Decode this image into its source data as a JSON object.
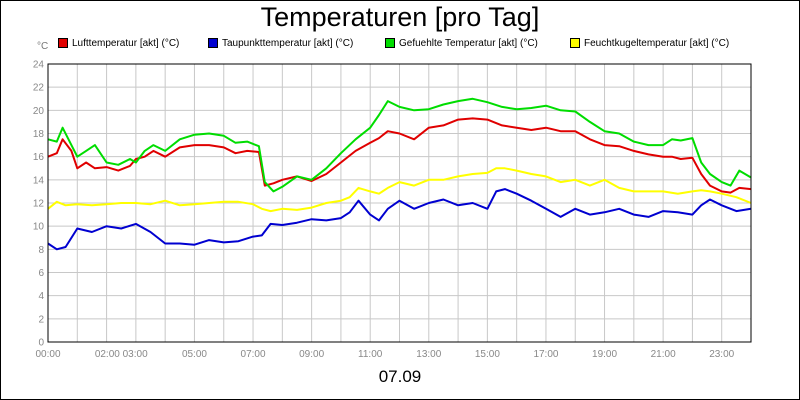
{
  "chart_data": {
    "type": "line",
    "title": "Temperaturen [pro Tag]",
    "ylabel": "°C",
    "xlabel": "07.09",
    "ylim": [
      0,
      24
    ],
    "xlim": [
      0,
      24
    ],
    "y_ticks": [
      0,
      2,
      4,
      6,
      8,
      10,
      12,
      14,
      16,
      18,
      20,
      22,
      24
    ],
    "x_tick_labels": [
      "00:00",
      "02:00 03:00",
      "05:00",
      "07:00",
      "09:00",
      "11:00",
      "13:00",
      "15:00",
      "17:00",
      "19:00",
      "21:00",
      "23:00"
    ],
    "x_tick_positions": [
      0,
      2.5,
      5,
      7,
      9,
      11,
      13,
      15,
      17,
      19,
      21,
      23
    ],
    "grid": true,
    "legend_position": "top",
    "series": [
      {
        "name": "Lufttemperatur [akt] (°C)",
        "color": "#e00000",
        "x": [
          0,
          0.3,
          0.5,
          0.8,
          1,
          1.3,
          1.6,
          2,
          2.4,
          2.8,
          3,
          3.3,
          3.6,
          4,
          4.5,
          5,
          5.5,
          6,
          6.4,
          6.8,
          7.2,
          7.4,
          7.7,
          8,
          8.5,
          9,
          9.5,
          10,
          10.5,
          11,
          11.3,
          11.6,
          12,
          12.5,
          13,
          13.5,
          14,
          14.5,
          15,
          15.5,
          16,
          16.5,
          17,
          17.5,
          18,
          18.5,
          19,
          19.5,
          20,
          20.5,
          21,
          21.3,
          21.6,
          22,
          22.3,
          22.6,
          23,
          23.3,
          23.6,
          24
        ],
        "values": [
          16,
          16.3,
          17.5,
          16.5,
          15,
          15.5,
          15,
          15.1,
          14.8,
          15.2,
          15.8,
          16,
          16.5,
          16,
          16.8,
          17,
          17,
          16.8,
          16.3,
          16.5,
          16.4,
          13.5,
          13.7,
          14,
          14.3,
          13.9,
          14.5,
          15.5,
          16.5,
          17.2,
          17.6,
          18.2,
          18,
          17.5,
          18.5,
          18.7,
          19.2,
          19.3,
          19.2,
          18.7,
          18.5,
          18.3,
          18.5,
          18.2,
          18.2,
          17.5,
          17,
          16.9,
          16.5,
          16.2,
          16,
          16,
          15.8,
          15.9,
          14.5,
          13.5,
          13,
          12.9,
          13.3,
          13.2
        ]
      },
      {
        "name": "Taupunkttemperatur [akt] (°C)",
        "color": "#0000d0",
        "x": [
          0,
          0.3,
          0.6,
          1,
          1.5,
          2,
          2.5,
          3,
          3.5,
          4,
          4.5,
          5,
          5.5,
          6,
          6.5,
          7,
          7.3,
          7.6,
          8,
          8.5,
          9,
          9.5,
          10,
          10.3,
          10.6,
          11,
          11.3,
          11.6,
          12,
          12.5,
          13,
          13.5,
          14,
          14.5,
          15,
          15.3,
          15.6,
          16,
          16.5,
          17,
          17.5,
          18,
          18.5,
          19,
          19.5,
          20,
          20.5,
          21,
          21.5,
          22,
          22.3,
          22.6,
          23,
          23.5,
          24
        ],
        "values": [
          8.5,
          8,
          8.2,
          9.8,
          9.5,
          10,
          9.8,
          10.2,
          9.5,
          8.5,
          8.5,
          8.4,
          8.8,
          8.6,
          8.7,
          9.1,
          9.2,
          10.2,
          10.1,
          10.3,
          10.6,
          10.5,
          10.7,
          11.2,
          12.2,
          11,
          10.5,
          11.5,
          12.2,
          11.5,
          12,
          12.3,
          11.8,
          12,
          11.5,
          13,
          13.2,
          12.8,
          12.2,
          11.5,
          10.8,
          11.5,
          11,
          11.2,
          11.5,
          11,
          10.8,
          11.3,
          11.2,
          11,
          11.8,
          12.3,
          11.8,
          11.3,
          11.5
        ]
      },
      {
        "name": "Gefuehlte Temperatur [akt] (°C)",
        "color": "#00dd00",
        "x": [
          0,
          0.3,
          0.5,
          0.8,
          1,
          1.3,
          1.6,
          2,
          2.4,
          2.8,
          3,
          3.3,
          3.6,
          4,
          4.5,
          5,
          5.5,
          6,
          6.4,
          6.8,
          7.2,
          7.4,
          7.7,
          8,
          8.5,
          9,
          9.5,
          10,
          10.5,
          11,
          11.3,
          11.6,
          12,
          12.5,
          13,
          13.5,
          14,
          14.5,
          15,
          15.5,
          16,
          16.5,
          17,
          17.5,
          18,
          18.5,
          19,
          19.5,
          20,
          20.5,
          21,
          21.3,
          21.6,
          22,
          22.3,
          22.6,
          23,
          23.3,
          23.6,
          24
        ],
        "values": [
          17.5,
          17.3,
          18.5,
          17,
          16,
          16.5,
          17,
          15.5,
          15.3,
          15.8,
          15.5,
          16.5,
          17,
          16.5,
          17.5,
          17.9,
          18,
          17.8,
          17.2,
          17.3,
          16.9,
          13.8,
          13,
          13.4,
          14.3,
          14,
          15,
          16.3,
          17.5,
          18.5,
          19.6,
          20.8,
          20.3,
          20,
          20.1,
          20.5,
          20.8,
          21,
          20.7,
          20.3,
          20.1,
          20.2,
          20.4,
          20,
          19.9,
          19,
          18.2,
          18,
          17.3,
          17,
          17,
          17.5,
          17.4,
          17.6,
          15.5,
          14.5,
          13.8,
          13.5,
          14.8,
          14.2
        ]
      },
      {
        "name": "Feuchtkugeltemperatur [akt] (°C)",
        "color": "#ffff00",
        "x": [
          0,
          0.3,
          0.6,
          1,
          1.5,
          2,
          2.5,
          3,
          3.5,
          4,
          4.5,
          5,
          5.5,
          6,
          6.5,
          7,
          7.3,
          7.6,
          8,
          8.5,
          9,
          9.5,
          10,
          10.3,
          10.6,
          11,
          11.3,
          11.6,
          12,
          12.5,
          13,
          13.5,
          14,
          14.5,
          15,
          15.3,
          15.6,
          16,
          16.5,
          17,
          17.5,
          18,
          18.5,
          19,
          19.5,
          20,
          20.5,
          21,
          21.5,
          22,
          22.3,
          22.6,
          23,
          23.5,
          24
        ],
        "values": [
          11.5,
          12.1,
          11.8,
          11.9,
          11.8,
          11.9,
          12,
          12,
          11.9,
          12.2,
          11.8,
          11.9,
          12,
          12.1,
          12.1,
          11.9,
          11.5,
          11.3,
          11.5,
          11.4,
          11.6,
          12,
          12.2,
          12.5,
          13.3,
          13,
          12.8,
          13.3,
          13.8,
          13.5,
          14,
          14,
          14.3,
          14.5,
          14.6,
          15,
          15,
          14.8,
          14.5,
          14.3,
          13.8,
          14,
          13.5,
          14,
          13.3,
          13,
          13,
          13,
          12.8,
          13,
          13.1,
          13,
          12.8,
          12.5,
          12
        ]
      }
    ]
  }
}
